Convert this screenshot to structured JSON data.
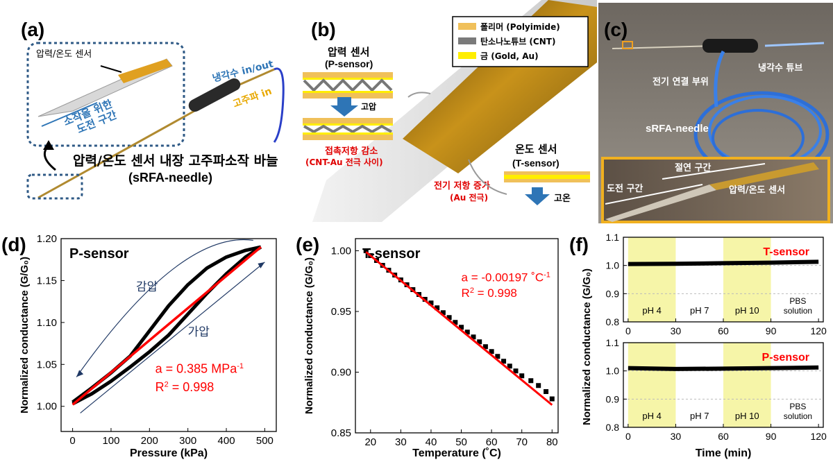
{
  "panels": {
    "a": {
      "label": "(a)",
      "sensor_label": "압력/온도 센서",
      "cooling_label": "냉각수 in/out",
      "rf_label": "고주파 in",
      "conduct_label_1": "소작을 위한",
      "conduct_label_2": "도전 구간",
      "title_1": "압력/온도 센서 내장 고주파소작 바늘",
      "title_2": "(sRFA-needle)"
    },
    "b": {
      "label": "(b)",
      "legend": [
        {
          "text": "폴리머 (Polyimide)",
          "color": "#f0c05a"
        },
        {
          "text": "탄소나노튜브 (CNT)",
          "color": "#7a7a7a"
        },
        {
          "text": "금 (Gold, Au)",
          "color": "#ffee00"
        }
      ],
      "p_title_1": "압력 센서",
      "p_title_2": "(P-sensor)",
      "p_arrow_label": "고압",
      "p_result_1": "접촉저항 감소",
      "p_result_2": "(CNT-Au 전극 사이)",
      "t_title_1": "온도 센서",
      "t_title_2": "(T-sensor)",
      "t_arrow_label": "고온",
      "t_result_1": "전기 저항 증가",
      "t_result_2": "(Au 전극)"
    },
    "c": {
      "label": "(c)",
      "elec_label": "전기 연결 부위",
      "tube_label": "냉각수 튜브",
      "needle_label": "sRFA-needle",
      "insul_label": "절연 구간",
      "conduct_label": "도전 구간",
      "sensor_label": "압력/온도 센서"
    },
    "d": {
      "label": "(d)",
      "chart_data": {
        "type": "line",
        "title": "P-sensor",
        "xlabel": "Pressure (kPa)",
        "ylabel": "Normalized conductance (G/G₀)",
        "xlim": [
          -30,
          530
        ],
        "ylim": [
          0.97,
          1.2
        ],
        "xticks": [
          0,
          100,
          200,
          300,
          400,
          500
        ],
        "yticks": [
          1.0,
          1.05,
          1.1,
          1.15,
          1.2
        ],
        "ytick_labels": [
          "1.00",
          "1.05",
          "1.10",
          "1.15",
          "1.20"
        ],
        "series": [
          {
            "name": "가압",
            "x": [
              0,
              50,
              100,
              150,
              200,
              250,
              300,
              350,
              400,
              450,
              490
            ],
            "y": [
              1.003,
              1.015,
              1.03,
              1.047,
              1.065,
              1.085,
              1.11,
              1.135,
              1.158,
              1.178,
              1.19
            ]
          },
          {
            "name": "감압",
            "x": [
              490,
              450,
              400,
              350,
              300,
              250,
              200,
              150,
              100,
              50,
              0
            ],
            "y": [
              1.19,
              1.186,
              1.178,
              1.165,
              1.145,
              1.12,
              1.09,
              1.06,
              1.04,
              1.022,
              1.005
            ]
          }
        ],
        "fit": {
          "x": [
            0,
            490
          ],
          "y": [
            1.002,
            1.19
          ],
          "color": "#ff0000"
        },
        "fit_text_1": "a = 0.385 MPa",
        "fit_text_1_sup": "-1",
        "fit_text_2": "R",
        "fit_text_2_sup": "2",
        "fit_text_2_rest": " = 0.998",
        "annotation_decrease": "감압",
        "annotation_increase": "가압"
      }
    },
    "e": {
      "label": "(e)",
      "chart_data": {
        "type": "scatter",
        "title": "T-sensor",
        "xlabel": "Temperature (˚C)",
        "ylabel": "Normalized conductance (G/G₀)",
        "xlim": [
          15,
          82
        ],
        "ylim": [
          0.85,
          1.01
        ],
        "xticks": [
          20,
          30,
          40,
          50,
          60,
          70,
          80
        ],
        "yticks": [
          0.85,
          0.9,
          0.95,
          1.0
        ],
        "ytick_labels": [
          "0.85",
          "0.90",
          "0.95",
          "1.00"
        ],
        "series": [
          {
            "name": "",
            "x": [
              18.5,
              20,
              22,
              24,
              26,
              28,
              30,
              32,
              34,
              36,
              38,
              40,
              42,
              44,
              46,
              48,
              50,
              52,
              54,
              56,
              58,
              60,
              62,
              64,
              66,
              68,
              70,
              73,
              75.5,
              78,
              80
            ],
            "y": [
              1.0,
              0.996,
              0.992,
              0.988,
              0.984,
              0.98,
              0.976,
              0.972,
              0.968,
              0.964,
              0.96,
              0.957,
              0.953,
              0.949,
              0.945,
              0.941,
              0.937,
              0.933,
              0.929,
              0.925,
              0.921,
              0.917,
              0.913,
              0.909,
              0.905,
              0.901,
              0.897,
              0.893,
              0.889,
              0.884,
              0.878
            ]
          }
        ],
        "fit": {
          "x": [
            18.5,
            80
          ],
          "y": [
            0.999,
            0.873
          ],
          "color": "#ff0000"
        },
        "fit_text_1": "a = -0.00197 ˚C",
        "fit_text_1_sup": "-1",
        "fit_text_2": "R",
        "fit_text_2_sup": "2",
        "fit_text_2_rest": " = 0.998"
      }
    },
    "f": {
      "label": "(f)",
      "chart_data": [
        {
          "type": "line",
          "title": "T-sensor",
          "xlim": [
            -3,
            123
          ],
          "ylim": [
            0.8,
            1.1
          ],
          "xticks": [
            0,
            30,
            60,
            90,
            120
          ],
          "yticks": [
            0.8,
            0.9,
            1.0,
            1.1
          ],
          "ytick_labels": [
            "0.8",
            "0.9",
            "1.0",
            "1.1"
          ],
          "bands": [
            [
              0,
              30
            ],
            [
              60,
              90
            ]
          ],
          "band_labels": [
            "pH 4",
            "pH 7",
            "pH 10",
            "PBS",
            "solution"
          ],
          "series": [
            {
              "name": "T-sensor",
              "x": [
                0,
                30,
                60,
                90,
                120
              ],
              "y": [
                1.005,
                1.006,
                1.008,
                1.01,
                1.013
              ]
            }
          ]
        },
        {
          "type": "line",
          "title": "P-sensor",
          "xlabel": "Time (min)",
          "xlim": [
            -3,
            123
          ],
          "ylim": [
            0.8,
            1.1
          ],
          "xticks": [
            0,
            30,
            60,
            90,
            120
          ],
          "yticks": [
            0.8,
            0.9,
            1.0,
            1.1
          ],
          "ytick_labels": [
            "0.8",
            "0.9",
            "1.0",
            "1.1"
          ],
          "bands": [
            [
              0,
              30
            ],
            [
              60,
              90
            ]
          ],
          "band_labels": [
            "pH 4",
            "pH 7",
            "pH 10",
            "PBS",
            "solution"
          ],
          "series": [
            {
              "name": "P-sensor",
              "x": [
                0,
                30,
                60,
                90,
                120
              ],
              "y": [
                1.01,
                1.007,
                1.008,
                1.01,
                1.012
              ]
            }
          ]
        }
      ],
      "ylabel": "Normalized conductance (G/G₀)"
    }
  }
}
